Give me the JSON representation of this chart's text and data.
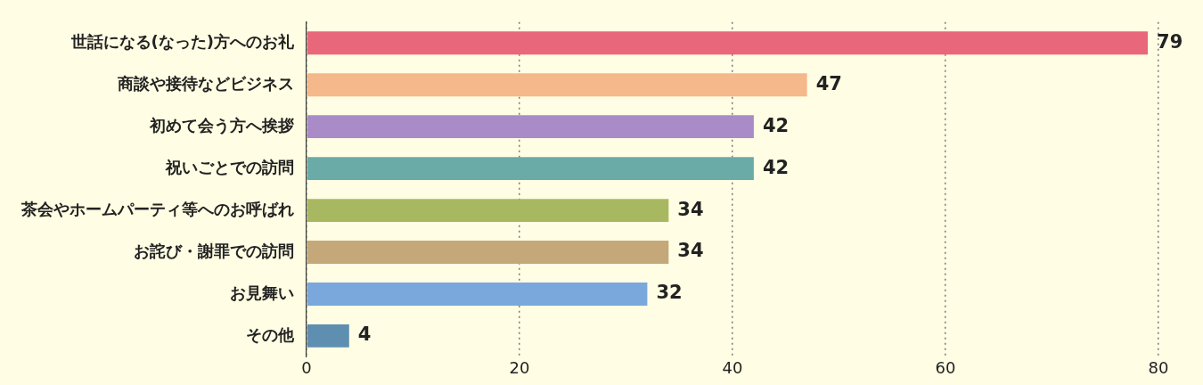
{
  "chart_data": {
    "type": "bar",
    "orientation": "horizontal",
    "categories": [
      "世話になる(なった)方へのお礼",
      "商談や接待などビジネス",
      "初めて会う方へ挨拶",
      "祝いごとでの訪問",
      "茶会やホームパーティ等へのお呼ばれ",
      "お詫び・謝罪での訪問",
      "お見舞い",
      "その他"
    ],
    "values": [
      79,
      47,
      42,
      42,
      34,
      34,
      32,
      4
    ],
    "colors": [
      "#e8677a",
      "#f5b88a",
      "#a98bc8",
      "#6aaba8",
      "#a8b860",
      "#c4a87a",
      "#7aa8dc",
      "#5f8fb0"
    ],
    "xlim": [
      0,
      80
    ],
    "xticks": [
      0,
      20,
      40,
      60,
      80
    ],
    "grid": "x",
    "data_labels": true,
    "legend": false
  }
}
